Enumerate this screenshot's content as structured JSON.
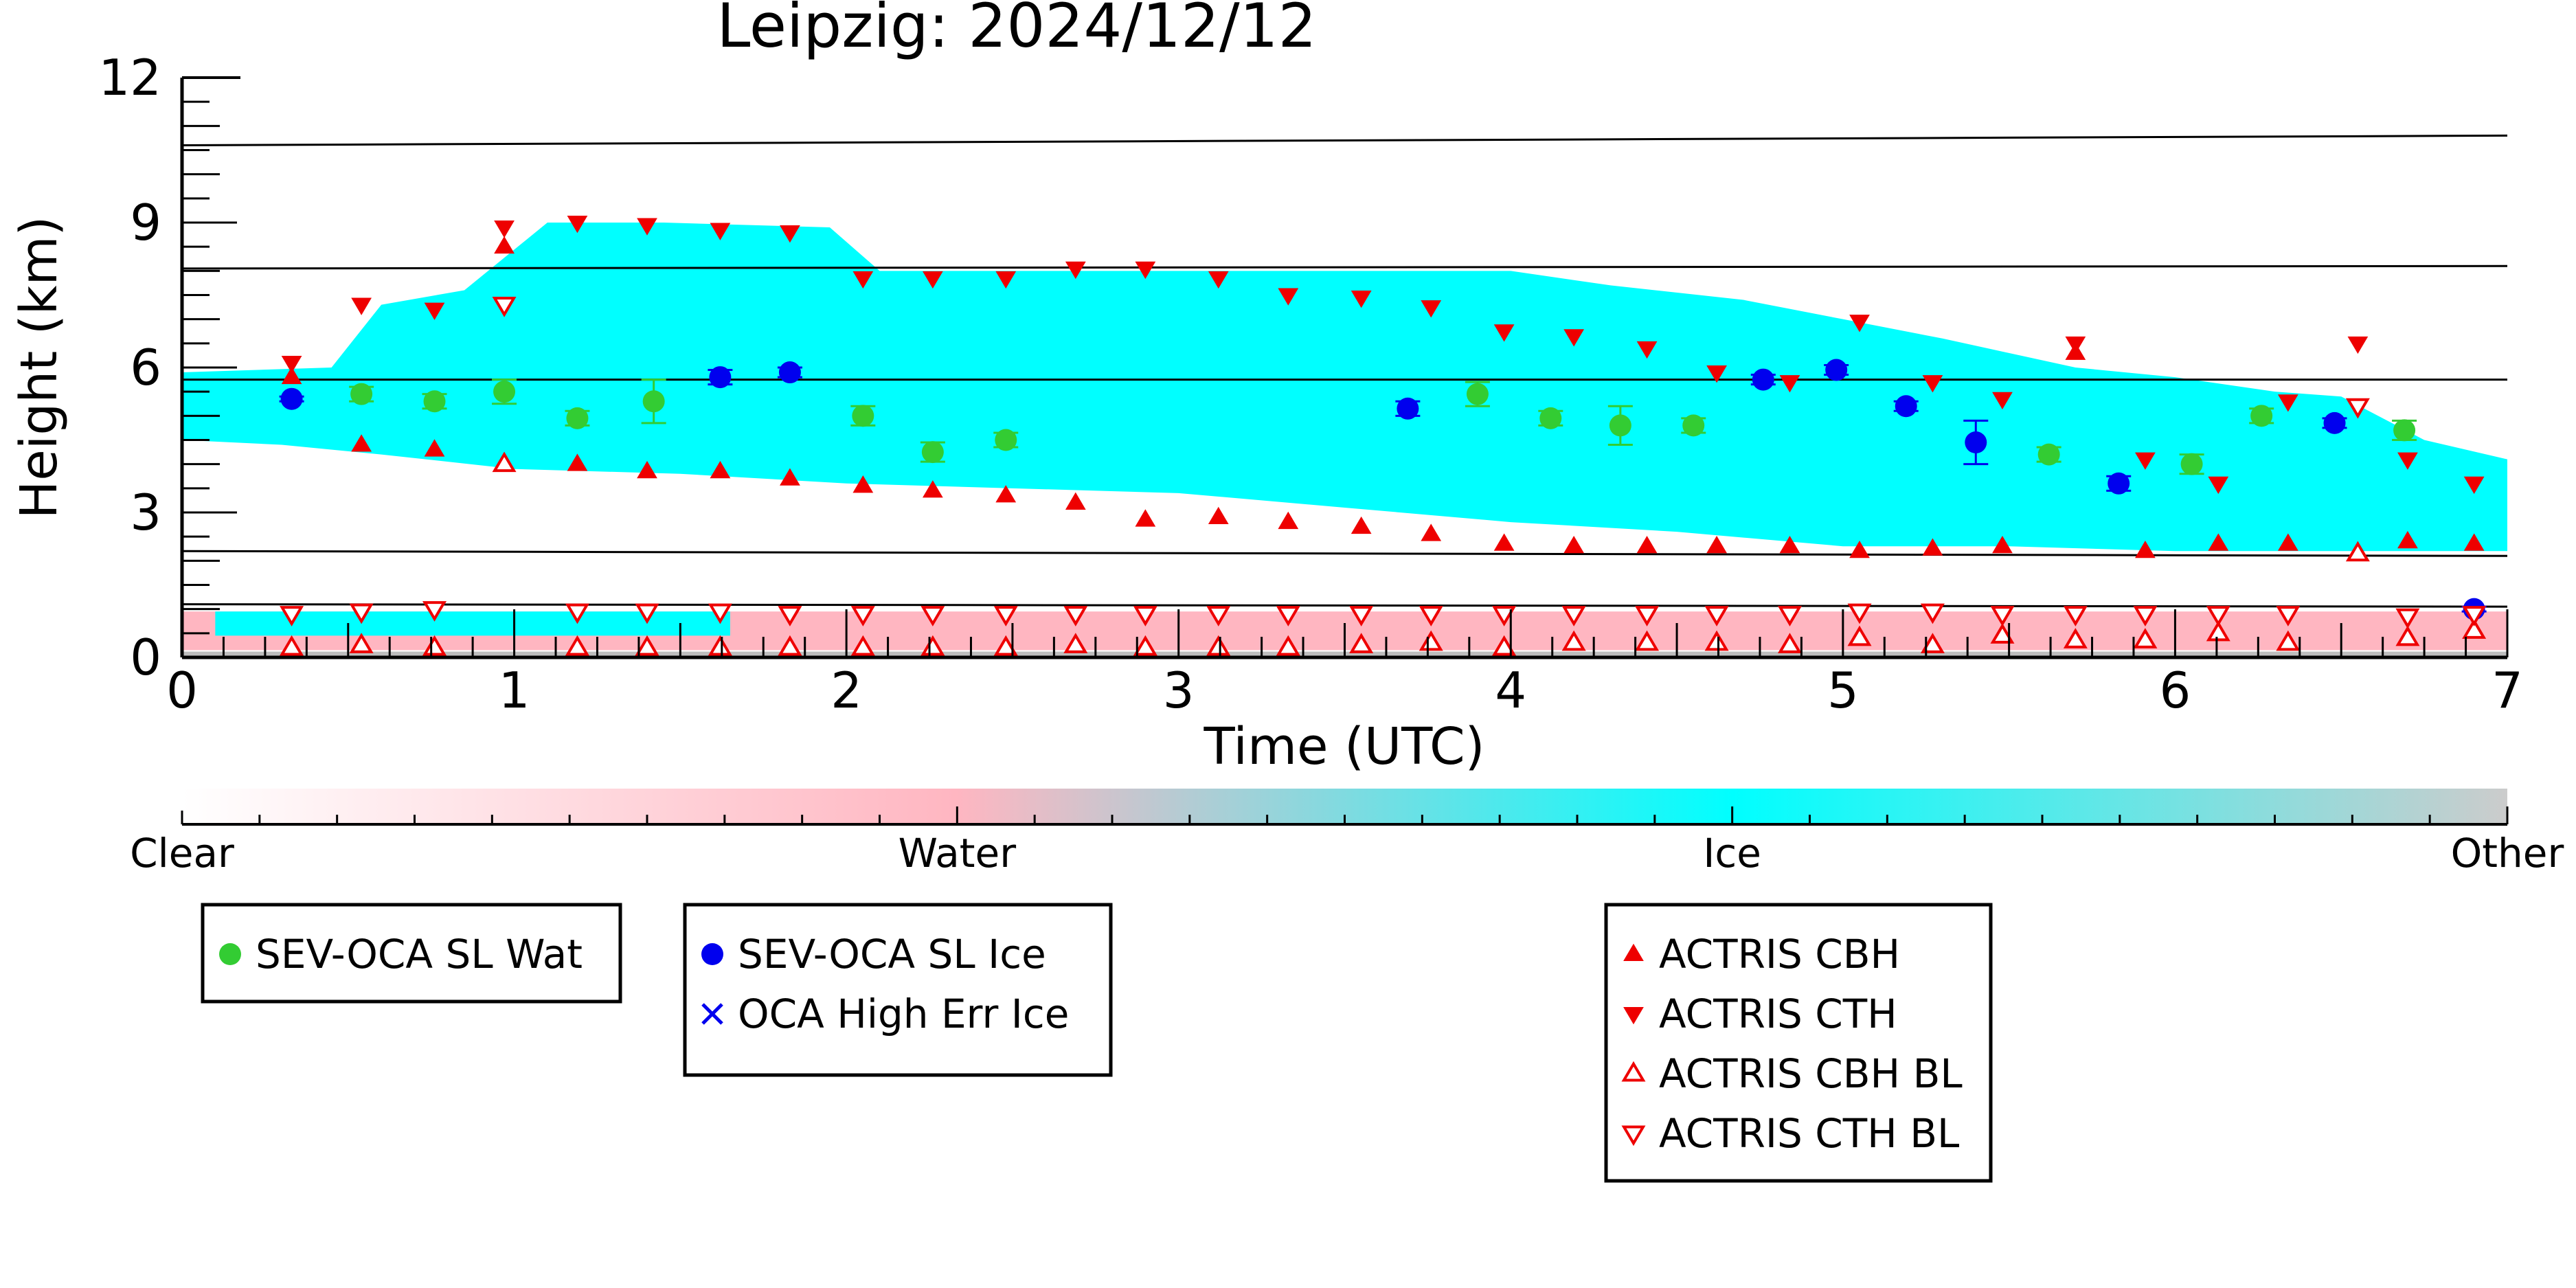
{
  "chart_data": {
    "type": "scatter",
    "title": "Leipzig: 2024/12/12",
    "xlabel": "Time (UTC)",
    "ylabel": "Height (km)",
    "xlim": [
      0,
      7
    ],
    "ylim": [
      0,
      12
    ],
    "x_ticks": [
      "0",
      "1",
      "2",
      "3",
      "4",
      "5",
      "6",
      "7"
    ],
    "y_ticks": [
      "0",
      "3",
      "6",
      "9",
      "12"
    ],
    "grid": false,
    "level_lines": [
      {
        "x": [
          0,
          7
        ],
        "y": [
          10.6,
          10.8
        ]
      },
      {
        "x": [
          0,
          7
        ],
        "y": [
          8.05,
          8.1
        ]
      },
      {
        "x": [
          0,
          7
        ],
        "y": [
          5.75,
          5.75
        ]
      },
      {
        "x": [
          0,
          7
        ],
        "y": [
          2.2,
          2.1
        ]
      },
      {
        "x": [
          0,
          7
        ],
        "y": [
          1.1,
          1.05
        ]
      }
    ],
    "background_layers": [
      {
        "class": "Ice",
        "color": "#00ffff",
        "top": [
          [
            0.0,
            5.9
          ],
          [
            0.45,
            6.0
          ],
          [
            0.6,
            7.3
          ],
          [
            0.85,
            7.6
          ],
          [
            1.1,
            9.0
          ],
          [
            1.45,
            9.0
          ],
          [
            1.95,
            8.9
          ],
          [
            2.1,
            8.0
          ],
          [
            2.7,
            8.0
          ],
          [
            3.1,
            8.0
          ],
          [
            3.5,
            8.0
          ],
          [
            4.0,
            8.0
          ],
          [
            4.3,
            7.7
          ],
          [
            4.7,
            7.4
          ],
          [
            5.0,
            7.0
          ],
          [
            5.3,
            6.6
          ],
          [
            5.7,
            6.0
          ],
          [
            6.0,
            5.8
          ],
          [
            6.3,
            5.5
          ],
          [
            6.5,
            5.4
          ],
          [
            6.75,
            4.5
          ],
          [
            7.0,
            4.1
          ]
        ],
        "bottom": [
          [
            7.0,
            2.2
          ],
          [
            6.8,
            2.2
          ],
          [
            6.5,
            2.2
          ],
          [
            6.0,
            2.2
          ],
          [
            5.5,
            2.3
          ],
          [
            5.0,
            2.3
          ],
          [
            4.5,
            2.6
          ],
          [
            4.0,
            2.8
          ],
          [
            3.5,
            3.1
          ],
          [
            3.0,
            3.4
          ],
          [
            2.5,
            3.5
          ],
          [
            2.0,
            3.6
          ],
          [
            1.5,
            3.8
          ],
          [
            1.0,
            3.9
          ],
          [
            0.6,
            4.2
          ],
          [
            0.3,
            4.4
          ],
          [
            0.0,
            4.5
          ]
        ]
      },
      {
        "class": "Water",
        "color": "#ffb6c1",
        "top": 0.95,
        "bottom": 0.15
      },
      {
        "class": "Ice",
        "color": "#00ffff",
        "top": 0.95,
        "bottom": 0.45,
        "x": [
          0.1,
          1.65
        ]
      },
      {
        "class": "Other",
        "color": "#bdbdbd",
        "top": 0.12,
        "bottom": 0.0
      }
    ],
    "colorbar": {
      "labels": [
        "Clear",
        "Water",
        "Ice",
        "Other"
      ],
      "stops": [
        {
          "color": "#ffffff",
          "pos": 0.0
        },
        {
          "color": "#ffb6c1",
          "pos": 0.333
        },
        {
          "color": "#00ffff",
          "pos": 0.667
        },
        {
          "color": "#cccccc",
          "pos": 1.0
        }
      ]
    },
    "series": [
      {
        "name": "SEV-OCA SL Wat",
        "color": "#33cc33",
        "marker": "circle",
        "x": [
          0.54,
          0.76,
          0.97,
          1.19,
          1.42,
          2.05,
          2.26,
          2.48,
          3.9,
          4.12,
          4.33,
          4.55,
          5.62,
          6.05,
          6.26,
          6.69
        ],
        "y": [
          5.45,
          5.3,
          5.5,
          4.95,
          5.3,
          5.0,
          4.25,
          4.5,
          5.45,
          4.95,
          4.8,
          4.8,
          4.2,
          4.0,
          5.0,
          4.7
        ],
        "yerr": [
          0.15,
          0.15,
          0.25,
          0.15,
          0.45,
          0.2,
          0.2,
          0.15,
          0.25,
          0.15,
          0.4,
          0.15,
          0.15,
          0.2,
          0.15,
          0.2
        ]
      },
      {
        "name": "SEV-OCA SL Ice",
        "color": "#0000ee",
        "marker": "circle",
        "x": [
          0.33,
          1.62,
          1.83,
          3.69,
          4.76,
          4.98,
          5.19,
          5.4,
          5.83,
          6.48,
          6.9
        ],
        "y": [
          5.35,
          5.8,
          5.9,
          5.15,
          5.75,
          5.95,
          5.2,
          4.45,
          3.6,
          4.85,
          1.0
        ],
        "yerr": [
          0.05,
          0.15,
          0.1,
          0.15,
          0.1,
          0.1,
          0.1,
          0.45,
          0.15,
          0.1,
          0.05
        ]
      },
      {
        "name": "OCA High Err Ice",
        "color": "#0000ee",
        "marker": "x",
        "x": [],
        "y": []
      },
      {
        "name": "ACTRIS CBH",
        "color": "#ee0000",
        "marker": "triangle-up",
        "x": [
          0.33,
          0.54,
          0.76,
          0.97,
          1.19,
          1.4,
          1.62,
          1.83,
          2.05,
          2.26,
          2.48,
          2.69,
          2.9,
          3.12,
          3.33,
          3.55,
          3.76,
          3.98,
          4.19,
          4.41,
          4.62,
          4.84,
          5.05,
          5.27,
          5.48,
          5.7,
          5.91,
          6.13,
          6.34,
          6.7,
          6.9
        ],
        "y": [
          5.8,
          4.4,
          4.3,
          8.5,
          4.0,
          3.85,
          3.85,
          3.7,
          3.55,
          3.45,
          3.35,
          3.2,
          2.85,
          2.9,
          2.8,
          2.7,
          2.55,
          2.35,
          2.3,
          2.3,
          2.3,
          2.3,
          2.2,
          2.25,
          2.3,
          6.3,
          2.2,
          2.35,
          2.35,
          2.4,
          2.35
        ]
      },
      {
        "name": "ACTRIS CTH",
        "color": "#ee0000",
        "marker": "triangle-down",
        "x": [
          0.33,
          0.54,
          0.76,
          0.97,
          1.19,
          1.4,
          1.62,
          1.83,
          2.05,
          2.26,
          2.48,
          2.69,
          2.9,
          3.12,
          3.33,
          3.55,
          3.76,
          3.98,
          4.19,
          4.41,
          4.62,
          4.84,
          5.05,
          5.27,
          5.48,
          5.7,
          5.91,
          6.13,
          6.34,
          6.55,
          6.7,
          6.9
        ],
        "y": [
          6.1,
          7.3,
          7.2,
          8.9,
          9.0,
          8.95,
          8.85,
          8.8,
          7.85,
          7.85,
          7.85,
          8.05,
          8.05,
          7.85,
          7.5,
          7.45,
          7.25,
          6.75,
          6.65,
          6.4,
          5.9,
          5.7,
          6.95,
          5.7,
          5.35,
          6.5,
          4.1,
          3.6,
          5.3,
          6.5,
          4.1,
          3.6
        ]
      },
      {
        "name": "ACTRIS CBH BL",
        "color": "#ee0000",
        "marker": "triangle-up-open",
        "x": [
          0.33,
          0.54,
          0.76,
          0.97,
          1.19,
          1.4,
          1.62,
          1.83,
          2.05,
          2.26,
          2.48,
          2.69,
          2.9,
          3.12,
          3.33,
          3.55,
          3.76,
          3.98,
          4.19,
          4.41,
          4.62,
          4.84,
          5.05,
          5.27,
          5.48,
          5.7,
          5.91,
          6.13,
          6.34,
          6.55,
          6.7,
          6.9
        ],
        "y": [
          0.2,
          0.25,
          0.2,
          4.0,
          0.2,
          0.2,
          0.2,
          0.2,
          0.2,
          0.2,
          0.2,
          0.25,
          0.2,
          0.2,
          0.2,
          0.25,
          0.3,
          0.2,
          0.3,
          0.3,
          0.3,
          0.25,
          0.4,
          0.25,
          0.45,
          0.35,
          0.35,
          0.5,
          0.3,
          2.15,
          0.4,
          0.55
        ]
      },
      {
        "name": "ACTRIS CTH BL",
        "color": "#ee0000",
        "marker": "triangle-down-open",
        "x": [
          0.33,
          0.54,
          0.76,
          0.97,
          1.19,
          1.4,
          1.62,
          1.83,
          2.05,
          2.26,
          2.48,
          2.69,
          2.9,
          3.12,
          3.33,
          3.55,
          3.76,
          3.98,
          4.19,
          4.41,
          4.62,
          4.84,
          5.05,
          5.27,
          5.48,
          5.7,
          5.91,
          6.13,
          6.34,
          6.55,
          6.7,
          6.9
        ],
        "y": [
          0.9,
          0.95,
          1.0,
          7.3,
          0.95,
          0.95,
          0.95,
          0.9,
          0.9,
          0.9,
          0.9,
          0.9,
          0.9,
          0.9,
          0.9,
          0.9,
          0.9,
          0.9,
          0.9,
          0.9,
          0.9,
          0.9,
          0.95,
          0.95,
          0.9,
          0.9,
          0.9,
          0.9,
          0.9,
          5.2,
          0.85,
          0.9
        ]
      }
    ],
    "legend_groups": [
      [
        "SEV-OCA SL Wat"
      ],
      [
        "SEV-OCA SL Ice",
        "OCA High Err Ice"
      ],
      [
        "ACTRIS CBH",
        "ACTRIS CTH",
        "ACTRIS CBH BL",
        "ACTRIS CTH BL"
      ]
    ]
  }
}
